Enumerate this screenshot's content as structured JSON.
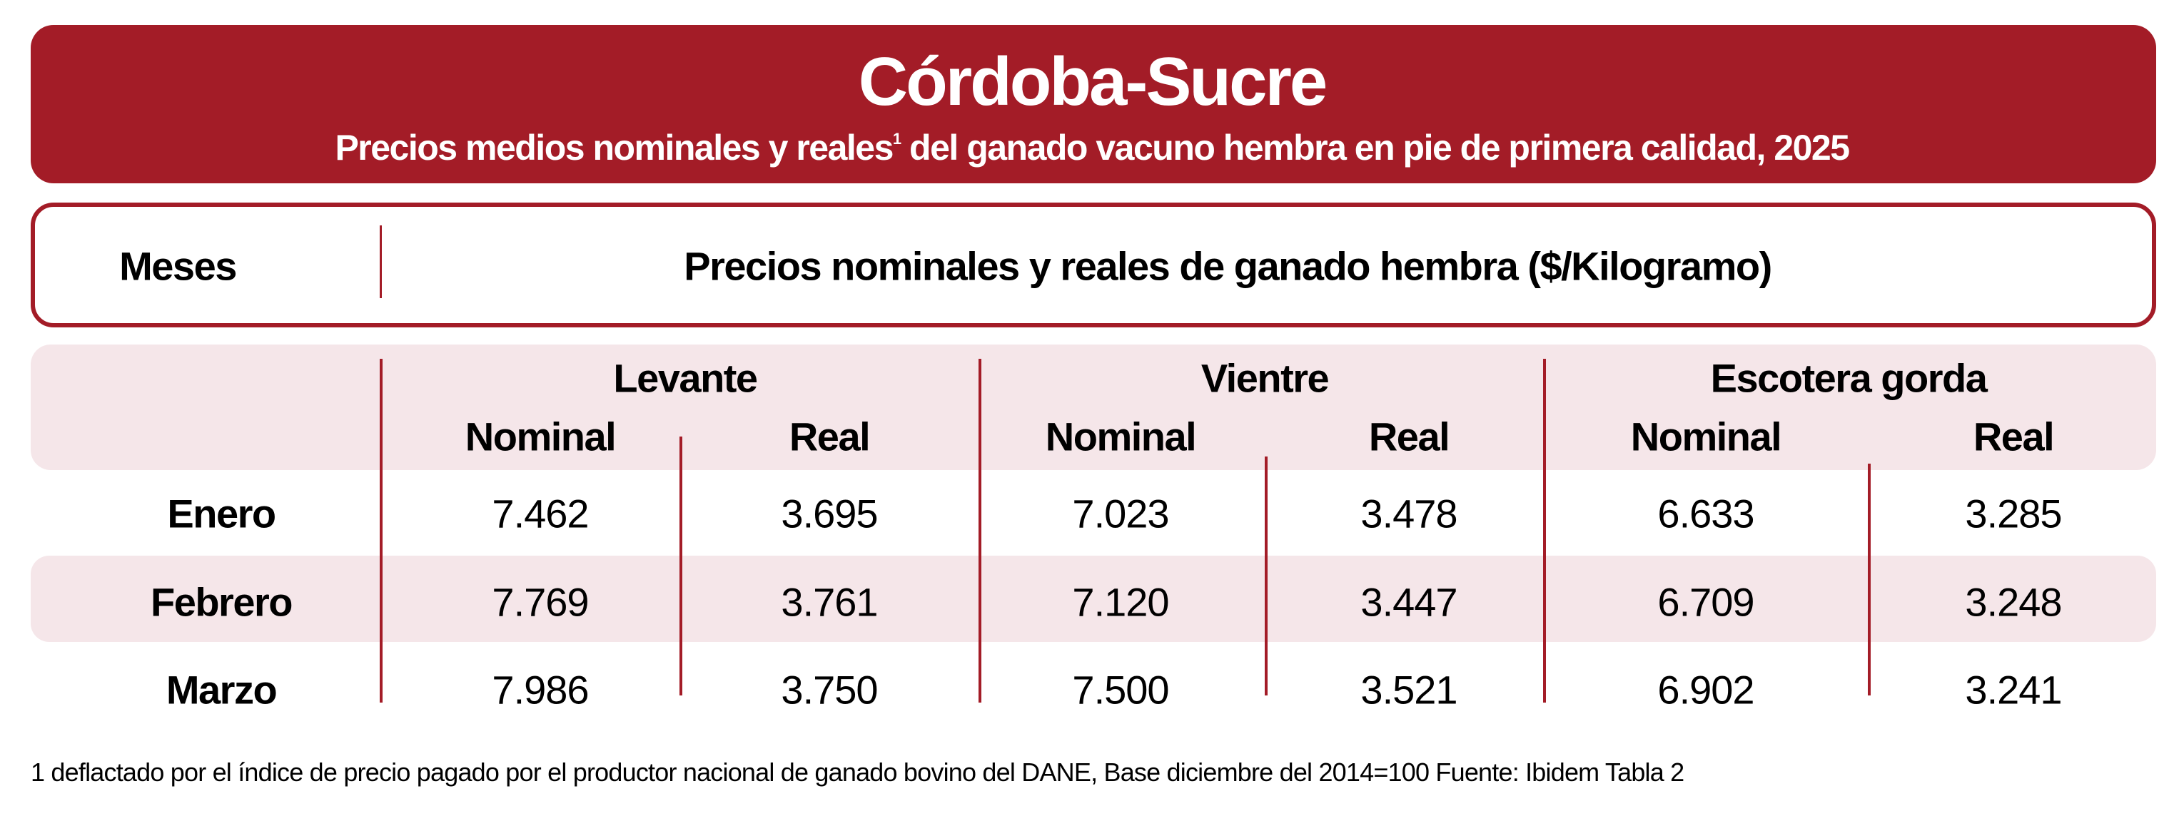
{
  "header": {
    "title": "Córdoba-Sucre",
    "subtitle_main": "Precios medios nominales y reales",
    "subtitle_sup": "1",
    "subtitle_rest": " del ganado vacuno hembra en pie de primera calidad, 2025"
  },
  "column_header": {
    "months_label": "Meses",
    "prices_label": "Precios nominales y reales de ganado hembra ($/Kilogramo)"
  },
  "groups": [
    {
      "label": "Levante",
      "sub": [
        "Nominal",
        "Real"
      ]
    },
    {
      "label": "Vientre",
      "sub": [
        "Nominal",
        "Real"
      ]
    },
    {
      "label": "Escotera gorda",
      "sub": [
        "Nominal",
        "Real"
      ]
    }
  ],
  "rows": [
    {
      "month": "Enero",
      "values": [
        "7.462",
        "3.695",
        "7.023",
        "3.478",
        "6.633",
        "3.285"
      ]
    },
    {
      "month": "Febrero",
      "values": [
        "7.769",
        "3.761",
        "7.120",
        "3.447",
        "6.709",
        "3.248"
      ]
    },
    {
      "month": "Marzo",
      "values": [
        "7.986",
        "3.750",
        "7.500",
        "3.521",
        "6.902",
        "3.241"
      ]
    }
  ],
  "footnote": "1 deflactado por el índice de precio pagado por el productor nacional de ganado bovino del DANE,  Base diciembre del 2014=100   Fuente: Ibidem Tabla 2",
  "colors": {
    "accent": "#a31c27",
    "band": "#f5e6e9"
  }
}
